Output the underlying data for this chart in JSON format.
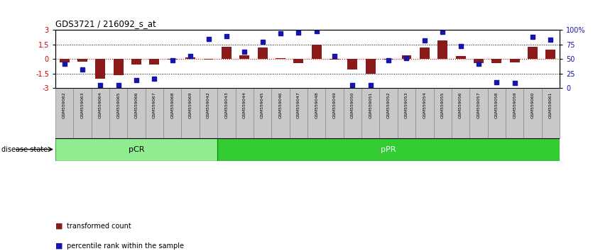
{
  "title": "GDS3721 / 216092_s_at",
  "samples": [
    "GSM559062",
    "GSM559063",
    "GSM559064",
    "GSM559065",
    "GSM559066",
    "GSM559067",
    "GSM559068",
    "GSM559069",
    "GSM559042",
    "GSM559043",
    "GSM559044",
    "GSM559045",
    "GSM559046",
    "GSM559047",
    "GSM559048",
    "GSM559049",
    "GSM559050",
    "GSM559051",
    "GSM559052",
    "GSM559053",
    "GSM559054",
    "GSM559055",
    "GSM559056",
    "GSM559057",
    "GSM559058",
    "GSM559059",
    "GSM559060",
    "GSM559061"
  ],
  "bar_values": [
    -0.35,
    -0.25,
    -2.05,
    -1.65,
    -0.55,
    -0.6,
    -0.05,
    0.15,
    -0.08,
    1.25,
    0.35,
    1.2,
    0.08,
    -0.45,
    1.5,
    -0.08,
    -1.1,
    -1.5,
    -0.05,
    0.35,
    1.2,
    1.9,
    0.3,
    -0.45,
    -0.45,
    -0.35,
    1.3,
    1.0
  ],
  "dot_values": [
    42,
    32,
    5,
    5,
    14,
    16,
    48,
    55,
    85,
    90,
    62,
    80,
    95,
    96,
    98,
    55,
    5,
    5,
    48,
    52,
    82,
    97,
    72,
    42,
    10,
    8,
    88,
    84
  ],
  "pcr_count": 9,
  "ppr_count": 19,
  "ylim": [
    -3,
    3
  ],
  "yticks_left": [
    -3,
    -1.5,
    0,
    1.5,
    3
  ],
  "yticks_right": [
    0,
    25,
    50,
    75,
    100
  ],
  "bar_color": "#8B1A1A",
  "dot_color": "#1515AA",
  "pcr_color": "#90EE90",
  "ppr_color": "#33CC33",
  "background_color": "#FFFFFF",
  "zero_line_color": "#CC0000",
  "black_color": "#000000",
  "gray_cell_color": "#C8C8C8",
  "gray_border_color": "#888888",
  "legend_bar_label": "transformed count",
  "legend_dot_label": "percentile rank within the sample",
  "disease_label": "disease state"
}
